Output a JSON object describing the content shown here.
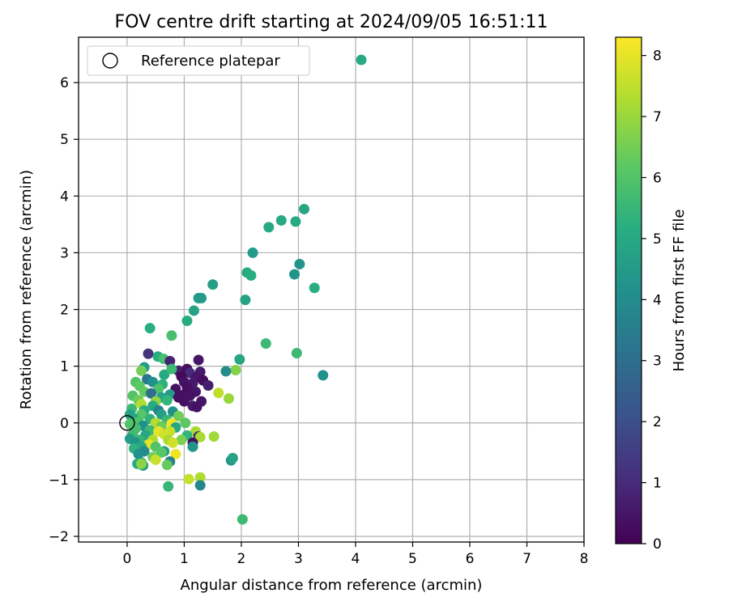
{
  "chart_data": {
    "type": "scatter",
    "title": "FOV centre drift starting at 2024/09/05 16:51:11",
    "xlabel": "Angular distance from reference (arcmin)",
    "ylabel": "Rotation from reference (arcmin)",
    "xlim": [
      -0.85,
      8.0
    ],
    "ylim": [
      -2.1,
      6.8
    ],
    "x_ticks": [
      "0",
      "1",
      "2",
      "3",
      "4",
      "5",
      "6",
      "7",
      "8"
    ],
    "y_ticks": [
      "−2",
      "−1",
      "0",
      "1",
      "2",
      "3",
      "4",
      "5",
      "6"
    ],
    "grid": true,
    "legend": {
      "position": "top-left",
      "entries": [
        "Reference platepar"
      ]
    },
    "reference_point": {
      "x": 0.0,
      "y": 0.0,
      "label": "Reference platepar"
    },
    "colorbar": {
      "label": "Hours from first FF file",
      "range": [
        0,
        8.3
      ],
      "ticks": [
        "0",
        "1",
        "2",
        "3",
        "4",
        "5",
        "6",
        "7",
        "8"
      ],
      "colormap": "viridis"
    },
    "points": [
      [
        4.1,
        6.4,
        5.0
      ],
      [
        3.1,
        3.77,
        4.9
      ],
      [
        2.95,
        3.55,
        5.0
      ],
      [
        2.7,
        3.57,
        5.0
      ],
      [
        2.48,
        3.45,
        5.0
      ],
      [
        2.2,
        3.0,
        4.5
      ],
      [
        3.02,
        2.8,
        4.3
      ],
      [
        2.93,
        2.62,
        4.3
      ],
      [
        3.28,
        2.38,
        5.2
      ],
      [
        2.1,
        2.65,
        5.0
      ],
      [
        2.17,
        2.6,
        5.2
      ],
      [
        1.5,
        2.44,
        4.7
      ],
      [
        1.25,
        2.2,
        4.5
      ],
      [
        1.3,
        2.2,
        4.5
      ],
      [
        2.07,
        2.17,
        4.8
      ],
      [
        1.17,
        1.98,
        4.8
      ],
      [
        1.05,
        1.8,
        5.1
      ],
      [
        0.4,
        1.67,
        5.2
      ],
      [
        0.78,
        1.54,
        5.8
      ],
      [
        2.43,
        1.4,
        5.6
      ],
      [
        2.97,
        1.23,
        5.6
      ],
      [
        1.97,
        1.12,
        4.9
      ],
      [
        3.43,
        0.84,
        4.2
      ],
      [
        1.9,
        0.93,
        6.7
      ],
      [
        1.73,
        0.91,
        4.0
      ],
      [
        0.37,
        1.22,
        1.2
      ],
      [
        0.54,
        1.17,
        5.2
      ],
      [
        0.64,
        1.13,
        5.8
      ],
      [
        0.75,
        1.09,
        0.8
      ],
      [
        1.25,
        1.11,
        0.5
      ],
      [
        0.3,
        0.98,
        4.5
      ],
      [
        0.25,
        0.92,
        6.5
      ],
      [
        0.9,
        0.92,
        0.7
      ],
      [
        1.05,
        0.95,
        0.3
      ],
      [
        1.28,
        0.9,
        0.6
      ],
      [
        1.1,
        0.88,
        1.0
      ],
      [
        0.65,
        0.85,
        5.0
      ],
      [
        0.78,
        0.95,
        5.6
      ],
      [
        0.95,
        0.82,
        0.2
      ],
      [
        1.2,
        0.8,
        0.5
      ],
      [
        0.35,
        0.77,
        3.2
      ],
      [
        0.45,
        0.72,
        4.2
      ],
      [
        0.15,
        0.72,
        6.0
      ],
      [
        0.62,
        0.68,
        5.3
      ],
      [
        1.0,
        0.72,
        0.4
      ],
      [
        1.15,
        0.7,
        0.6
      ],
      [
        1.33,
        0.75,
        0.3
      ],
      [
        0.22,
        0.65,
        6.2
      ],
      [
        0.55,
        0.6,
        5.9
      ],
      [
        0.85,
        0.6,
        0.4
      ],
      [
        1.05,
        0.62,
        0.3
      ],
      [
        1.42,
        0.66,
        0.7
      ],
      [
        0.3,
        0.55,
        6.3
      ],
      [
        0.42,
        0.52,
        3.0
      ],
      [
        0.75,
        0.5,
        4.5
      ],
      [
        1.0,
        0.5,
        0.3
      ],
      [
        1.2,
        0.55,
        0.5
      ],
      [
        1.6,
        0.53,
        7.5
      ],
      [
        0.1,
        0.48,
        6.0
      ],
      [
        0.6,
        0.45,
        4.8
      ],
      [
        0.9,
        0.45,
        0.3
      ],
      [
        1.1,
        0.48,
        0.4
      ],
      [
        1.78,
        0.43,
        7.0
      ],
      [
        0.2,
        0.4,
        6.4
      ],
      [
        0.5,
        0.38,
        6.9
      ],
      [
        0.7,
        0.4,
        5.4
      ],
      [
        1.0,
        0.38,
        0.4
      ],
      [
        1.3,
        0.38,
        0.5
      ],
      [
        0.25,
        0.33,
        7.3
      ],
      [
        0.45,
        0.3,
        5.0
      ],
      [
        1.15,
        0.3,
        0.6
      ],
      [
        1.22,
        0.28,
        0.4
      ],
      [
        0.08,
        0.25,
        5.6
      ],
      [
        0.3,
        0.22,
        5.2
      ],
      [
        0.55,
        0.22,
        3.6
      ],
      [
        0.8,
        0.2,
        4.2
      ],
      [
        0.05,
        0.15,
        4.8
      ],
      [
        0.25,
        0.15,
        6.1
      ],
      [
        0.6,
        0.15,
        4.6
      ],
      [
        0.9,
        0.12,
        6.5
      ],
      [
        0.12,
        0.08,
        4.9
      ],
      [
        0.4,
        0.07,
        5.3
      ],
      [
        0.7,
        0.05,
        5.5
      ],
      [
        0.2,
        0.02,
        5.9
      ],
      [
        0.5,
        0.0,
        7.4
      ],
      [
        0.78,
        -0.01,
        8.1
      ],
      [
        1.02,
        0.0,
        6.2
      ],
      [
        0.05,
        -0.02,
        6.0
      ],
      [
        0.28,
        -0.05,
        4.2
      ],
      [
        0.6,
        -0.06,
        6.4
      ],
      [
        0.85,
        -0.08,
        4.9
      ],
      [
        0.15,
        -0.1,
        5.8
      ],
      [
        0.4,
        -0.13,
        5.6
      ],
      [
        0.55,
        -0.15,
        8.0
      ],
      [
        0.75,
        -0.15,
        7.6
      ],
      [
        1.2,
        -0.15,
        7.2
      ],
      [
        0.1,
        -0.2,
        5.7
      ],
      [
        0.32,
        -0.22,
        4.9
      ],
      [
        0.65,
        -0.2,
        7.7
      ],
      [
        1.05,
        -0.22,
        5.4
      ],
      [
        1.25,
        -0.24,
        0.7
      ],
      [
        1.52,
        -0.24,
        7.1
      ],
      [
        0.05,
        -0.28,
        4.5
      ],
      [
        0.22,
        -0.3,
        5.5
      ],
      [
        0.45,
        -0.3,
        7.3
      ],
      [
        0.72,
        -0.3,
        7.2
      ],
      [
        0.95,
        -0.3,
        6.6
      ],
      [
        1.28,
        -0.25,
        7.2
      ],
      [
        0.15,
        -0.35,
        4.3
      ],
      [
        0.38,
        -0.38,
        8.0
      ],
      [
        0.8,
        -0.35,
        7.7
      ],
      [
        1.15,
        -0.35,
        0.3
      ],
      [
        0.25,
        -0.42,
        5.0
      ],
      [
        0.5,
        -0.42,
        6.0
      ],
      [
        1.15,
        -0.42,
        4.3
      ],
      [
        0.12,
        -0.45,
        5.3
      ],
      [
        0.3,
        -0.5,
        3.9
      ],
      [
        0.65,
        -0.5,
        4.7
      ],
      [
        0.85,
        -0.55,
        8.1
      ],
      [
        0.2,
        -0.55,
        4.2
      ],
      [
        0.45,
        -0.6,
        6.5
      ],
      [
        0.6,
        -0.52,
        6.1
      ],
      [
        0.25,
        -0.7,
        4.8
      ],
      [
        0.5,
        -0.65,
        7.6
      ],
      [
        0.75,
        -0.68,
        3.6
      ],
      [
        0.18,
        -0.72,
        5.0
      ],
      [
        0.28,
        -0.75,
        4.6
      ],
      [
        0.7,
        -0.74,
        6.3
      ],
      [
        0.25,
        -0.72,
        6.8
      ],
      [
        1.82,
        -0.66,
        4.3
      ],
      [
        1.85,
        -0.62,
        4.8
      ],
      [
        1.28,
        -0.96,
        7.3
      ],
      [
        1.08,
        -0.99,
        7.6
      ],
      [
        0.72,
        -1.12,
        5.5
      ],
      [
        1.28,
        -1.1,
        3.8
      ],
      [
        2.02,
        -1.7,
        5.6
      ]
    ]
  }
}
